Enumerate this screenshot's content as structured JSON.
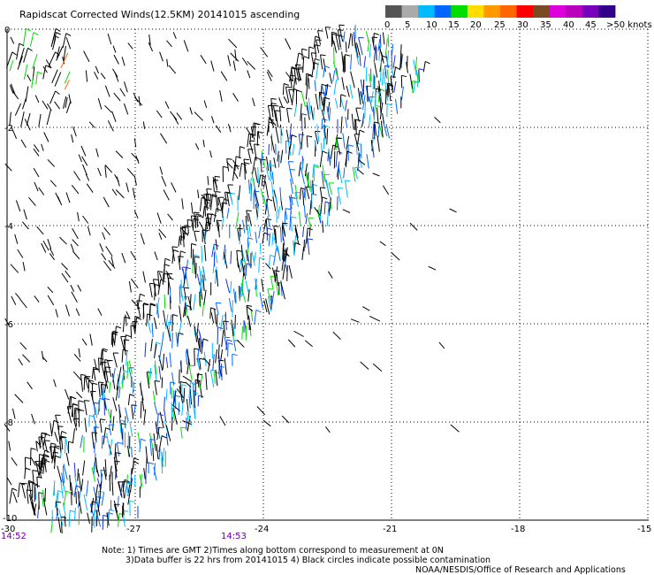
{
  "title": "Rapidscat Corrected Winds(12.5KM) 20141015 ascending",
  "colorbar": {
    "colors": [
      "#555555",
      "#aaaaaa",
      "#00bbff",
      "#0066ff",
      "#00dd00",
      "#ffdd00",
      "#ff9900",
      "#ff6600",
      "#ff0000",
      "#7a4a22",
      "#dd00dd",
      "#bb00bb",
      "#7700bb",
      "#330088"
    ],
    "labels": [
      "0",
      "5",
      "10",
      "15",
      "20",
      "25",
      "30",
      "35",
      "40",
      "45",
      ">50 knots"
    ]
  },
  "map": {
    "lon_labels": [
      "-30",
      "-27",
      "-24",
      "-21",
      "-18",
      "-15"
    ],
    "lat_labels": [
      "0",
      "-2",
      "-4",
      "-6",
      "-8",
      "-10"
    ],
    "time_labels": [
      "14:52",
      "14:53"
    ],
    "time_color": "#660099"
  },
  "notes": {
    "line1": "Note: 1) Times are GMT 2)Times along bottom correspond to measurement at 0N",
    "line2": "3)Data buffer is 22 hrs from 20141015 4) Black circles indicate possible contamination",
    "line3": "NOAA/NESDIS/Office of Research and Applications"
  }
}
